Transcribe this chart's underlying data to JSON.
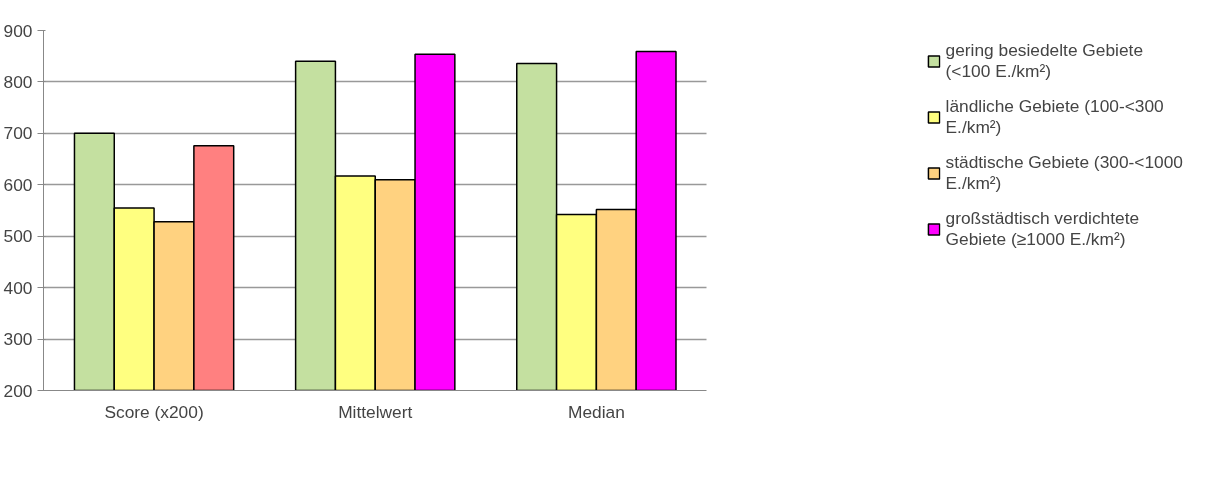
{
  "chart_data": {
    "type": "bar",
    "categories": [
      "Score (x200)",
      "Mittelwert",
      "Median"
    ],
    "series": [
      {
        "name": "gering besiedelte Gebiete (<100 E./km²)",
        "color": "#c4e0a0",
        "values": [
          700,
          840,
          836
        ]
      },
      {
        "name": "ländliche Gebiete (100-<300 E./km²)",
        "color": "#ffff80",
        "values": [
          555,
          617,
          542
        ]
      },
      {
        "name": "städtische Gebiete (300-<1000 E./km²)",
        "color": "#ffd280",
        "values": [
          528,
          610,
          552
        ]
      },
      {
        "name": "großstädtisch verdichtete Gebiete (≥1000 E./km²)",
        "color": "#ff00ff",
        "colors": [
          "#ff8080",
          "#ff00ff",
          "#ff00ff"
        ],
        "values": [
          676,
          854,
          859
        ]
      }
    ],
    "ylim": [
      200,
      900
    ],
    "yticks": [
      200,
      300,
      400,
      500,
      600,
      700,
      800,
      900
    ],
    "grid": "y",
    "legend": "right"
  }
}
